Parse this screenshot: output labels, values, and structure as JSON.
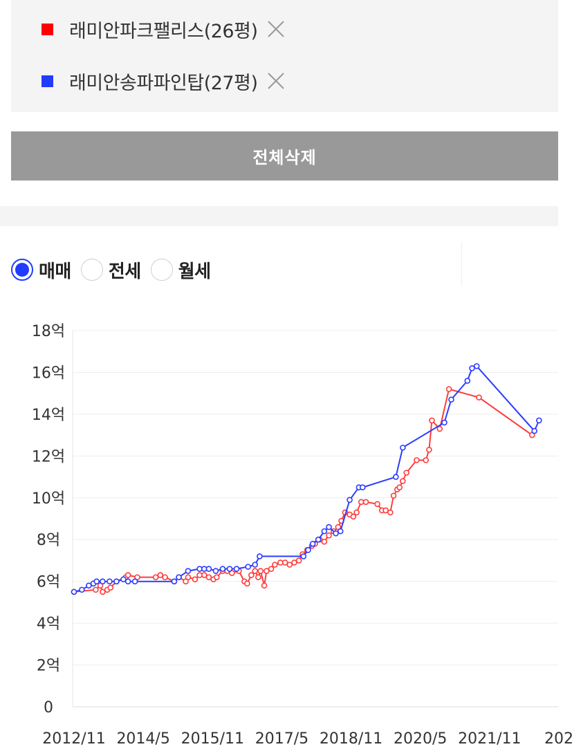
{
  "legend": {
    "items": [
      {
        "label": "래미안파크팰리스(26평)",
        "color": "#ff0000",
        "icon": "close-icon"
      },
      {
        "label": "래미안송파파인탑(27평)",
        "color": "#1f3cff",
        "icon": "close-icon"
      }
    ]
  },
  "actions": {
    "delete_all_label": "전체삭제"
  },
  "trade_type": {
    "options": [
      "매매",
      "전세",
      "월세"
    ],
    "selected": "매매"
  },
  "chart_data": {
    "type": "line",
    "x_unit": "year (decimal)",
    "xlim": [
      2012.8,
      2023.3
    ],
    "ylim": [
      0,
      18
    ],
    "yticks": [
      {
        "value": 18,
        "label": "18억"
      },
      {
        "value": 16,
        "label": "16억"
      },
      {
        "value": 14,
        "label": "14억"
      },
      {
        "value": 12,
        "label": "12억"
      },
      {
        "value": 10,
        "label": "10억"
      },
      {
        "value": 8,
        "label": "8억"
      },
      {
        "value": 6,
        "label": "6억"
      },
      {
        "value": 4,
        "label": "4억"
      },
      {
        "value": 2,
        "label": "2억"
      },
      {
        "value": 0,
        "label": "0"
      }
    ],
    "xticks": [
      {
        "value": 2012.83,
        "label": "2012/11"
      },
      {
        "value": 2014.33,
        "label": "2014/5"
      },
      {
        "value": 2015.83,
        "label": "2015/11"
      },
      {
        "value": 2017.33,
        "label": "2017/5"
      },
      {
        "value": 2018.83,
        "label": "2018/11"
      },
      {
        "value": 2020.33,
        "label": "2020/5"
      },
      {
        "value": 2021.83,
        "label": "2021/11"
      },
      {
        "value": 2023.33,
        "label": "202"
      }
    ],
    "grid": true,
    "series": [
      {
        "name": "래미안파크팰리스(26평)",
        "color": "#ff3b3b",
        "points": [
          [
            2012.83,
            5.5
          ],
          [
            2013.3,
            5.6
          ],
          [
            2013.4,
            5.8
          ],
          [
            2013.45,
            5.5
          ],
          [
            2013.55,
            5.6
          ],
          [
            2013.62,
            5.7
          ],
          [
            2013.75,
            6.0
          ],
          [
            2013.95,
            6.2
          ],
          [
            2014.0,
            6.3
          ],
          [
            2014.2,
            6.2
          ],
          [
            2014.6,
            6.2
          ],
          [
            2014.7,
            6.3
          ],
          [
            2014.8,
            6.2
          ],
          [
            2015.0,
            6.0
          ],
          [
            2015.1,
            6.2
          ],
          [
            2015.25,
            6.0
          ],
          [
            2015.3,
            6.2
          ],
          [
            2015.45,
            6.1
          ],
          [
            2015.55,
            6.3
          ],
          [
            2015.65,
            6.3
          ],
          [
            2015.75,
            6.2
          ],
          [
            2015.85,
            6.1
          ],
          [
            2015.92,
            6.2
          ],
          [
            2016.05,
            6.5
          ],
          [
            2016.15,
            6.5
          ],
          [
            2016.25,
            6.4
          ],
          [
            2016.4,
            6.5
          ],
          [
            2016.52,
            6.0
          ],
          [
            2016.58,
            5.9
          ],
          [
            2016.67,
            6.3
          ],
          [
            2016.75,
            6.5
          ],
          [
            2016.82,
            6.2
          ],
          [
            2016.87,
            6.5
          ],
          [
            2016.95,
            5.8
          ],
          [
            2017.0,
            6.5
          ],
          [
            2017.1,
            6.6
          ],
          [
            2017.18,
            6.8
          ],
          [
            2017.3,
            6.9
          ],
          [
            2017.4,
            6.9
          ],
          [
            2017.5,
            6.8
          ],
          [
            2017.6,
            6.9
          ],
          [
            2017.7,
            7.0
          ],
          [
            2017.78,
            7.3
          ],
          [
            2017.88,
            7.5
          ],
          [
            2017.98,
            7.7
          ],
          [
            2018.05,
            7.8
          ],
          [
            2018.15,
            8.0
          ],
          [
            2018.25,
            7.9
          ],
          [
            2018.35,
            8.2
          ],
          [
            2018.45,
            8.4
          ],
          [
            2018.55,
            8.6
          ],
          [
            2018.62,
            8.9
          ],
          [
            2018.7,
            9.3
          ],
          [
            2018.8,
            9.2
          ],
          [
            2018.88,
            9.1
          ],
          [
            2018.95,
            9.3
          ],
          [
            2019.05,
            9.8
          ],
          [
            2019.15,
            9.8
          ],
          [
            2019.4,
            9.7
          ],
          [
            2019.5,
            9.4
          ],
          [
            2019.58,
            9.4
          ],
          [
            2019.68,
            9.3
          ],
          [
            2019.75,
            10.1
          ],
          [
            2019.83,
            10.4
          ],
          [
            2019.88,
            10.5
          ],
          [
            2019.95,
            10.8
          ],
          [
            2020.03,
            11.2
          ],
          [
            2020.25,
            11.8
          ],
          [
            2020.45,
            11.8
          ],
          [
            2020.52,
            12.3
          ],
          [
            2020.58,
            13.7
          ],
          [
            2020.75,
            13.3
          ],
          [
            2020.95,
            15.2
          ],
          [
            2021.6,
            14.8
          ],
          [
            2022.75,
            13.0
          ]
        ]
      },
      {
        "name": "래미안송파파인탑(27평)",
        "color": "#2a3cff",
        "points": [
          [
            2012.83,
            5.5
          ],
          [
            2013.0,
            5.6
          ],
          [
            2013.15,
            5.8
          ],
          [
            2013.25,
            5.9
          ],
          [
            2013.32,
            6.0
          ],
          [
            2013.45,
            6.0
          ],
          [
            2013.6,
            6.0
          ],
          [
            2013.75,
            6.0
          ],
          [
            2013.9,
            6.1
          ],
          [
            2014.0,
            6.0
          ],
          [
            2014.15,
            6.0
          ],
          [
            2015.0,
            6.0
          ],
          [
            2015.1,
            6.2
          ],
          [
            2015.3,
            6.5
          ],
          [
            2015.55,
            6.6
          ],
          [
            2015.65,
            6.6
          ],
          [
            2015.75,
            6.6
          ],
          [
            2015.9,
            6.5
          ],
          [
            2016.05,
            6.6
          ],
          [
            2016.2,
            6.6
          ],
          [
            2016.35,
            6.6
          ],
          [
            2016.6,
            6.7
          ],
          [
            2016.75,
            6.8
          ],
          [
            2016.85,
            7.2
          ],
          [
            2017.8,
            7.2
          ],
          [
            2017.9,
            7.5
          ],
          [
            2018.0,
            7.8
          ],
          [
            2018.12,
            8.0
          ],
          [
            2018.25,
            8.4
          ],
          [
            2018.35,
            8.6
          ],
          [
            2018.5,
            8.3
          ],
          [
            2018.6,
            8.4
          ],
          [
            2018.8,
            9.9
          ],
          [
            2019.0,
            10.5
          ],
          [
            2019.08,
            10.5
          ],
          [
            2019.8,
            11.0
          ],
          [
            2019.95,
            12.4
          ],
          [
            2020.85,
            13.6
          ],
          [
            2021.0,
            14.7
          ],
          [
            2021.35,
            15.6
          ],
          [
            2021.45,
            16.2
          ],
          [
            2021.55,
            16.3
          ],
          [
            2022.8,
            13.2
          ],
          [
            2022.9,
            13.7
          ]
        ]
      }
    ]
  }
}
